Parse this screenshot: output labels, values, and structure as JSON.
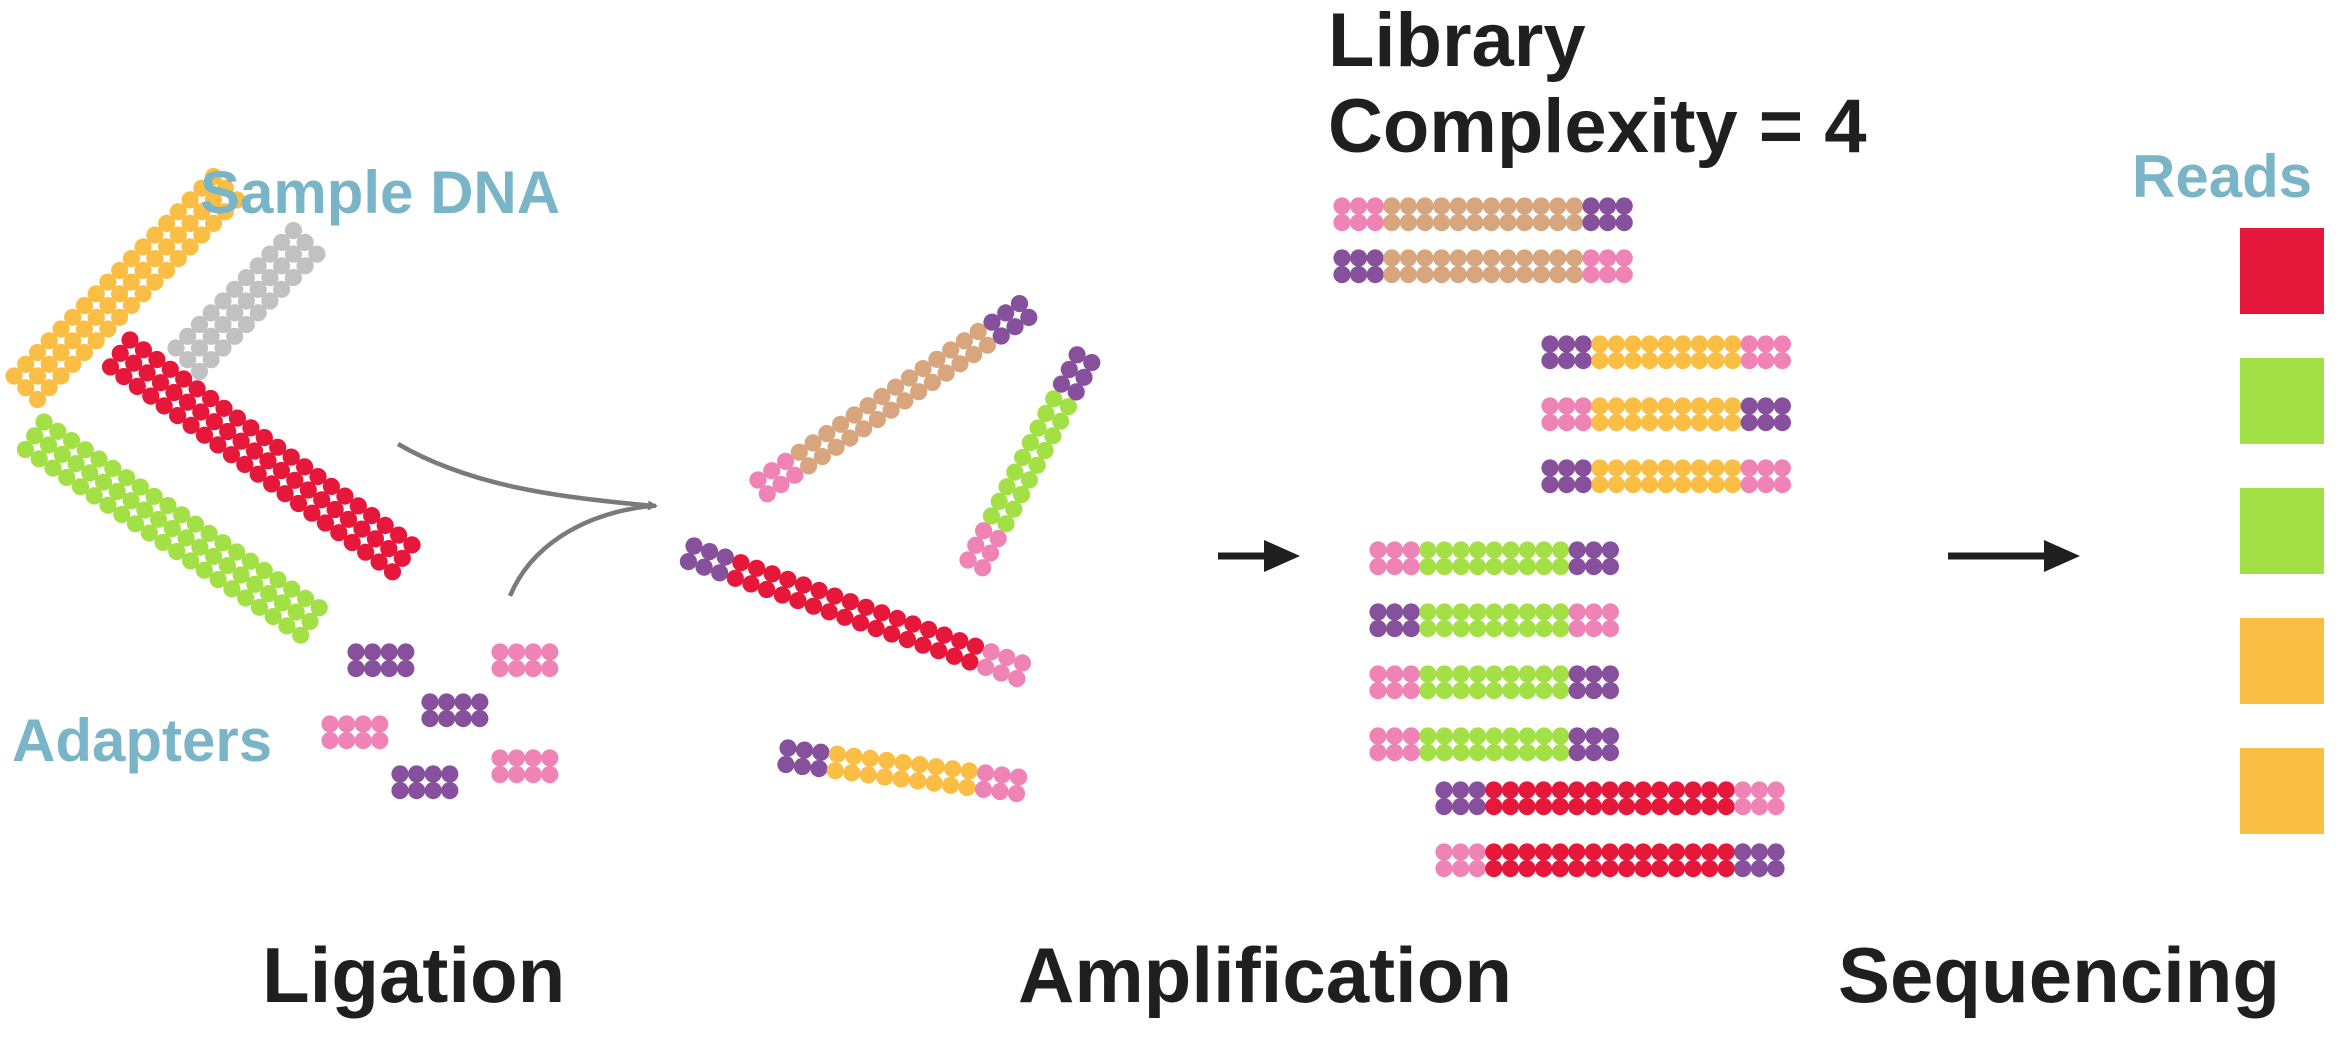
{
  "labels": {
    "sample_dna": "Sample DNA",
    "adapters": "Adapters",
    "library_line1": "Library",
    "library_line2": "Complexity = 4",
    "reads": "Reads",
    "stage_ligation": "Ligation",
    "stage_amplification": "Amplification",
    "stage_sequencing": "Sequencing"
  },
  "colors": {
    "red": "#e5173b",
    "green": "#a2e045",
    "orange": "#fbbe44",
    "tan": "#d8a67e",
    "gray": "#c1c1c3",
    "pink": "#ef83b5",
    "purple": "#87509c",
    "arrow_gray": "#7a7a7a",
    "arrow_black": "#1f1f1f",
    "label_blue": "#7ab5c7",
    "label_black": "#1f1f1f"
  },
  "library_complexity": 4,
  "reads": [
    "red",
    "green",
    "green",
    "orange",
    "orange"
  ],
  "ligated_fragments": [
    {
      "insert": "tan",
      "left": "pink",
      "right": "purple"
    },
    {
      "insert": "green",
      "left": "pink",
      "right": "purple"
    },
    {
      "insert": "red",
      "left": "purple",
      "right": "pink"
    },
    {
      "insert": "orange",
      "left": "purple",
      "right": "pink"
    }
  ],
  "amplified_groups": [
    {
      "insert": "tan",
      "copies": [
        [
          "pink",
          "purple"
        ],
        [
          "purple",
          "pink"
        ]
      ]
    },
    {
      "insert": "orange",
      "copies": [
        [
          "purple",
          "pink"
        ],
        [
          "pink",
          "purple"
        ],
        [
          "purple",
          "pink"
        ]
      ]
    },
    {
      "insert": "green",
      "copies": [
        [
          "pink",
          "purple"
        ],
        [
          "purple",
          "pink"
        ],
        [
          "pink",
          "purple"
        ],
        [
          "pink",
          "purple"
        ]
      ]
    },
    {
      "insert": "red",
      "copies": [
        [
          "purple",
          "pink"
        ],
        [
          "pink",
          "purple"
        ]
      ]
    }
  ]
}
